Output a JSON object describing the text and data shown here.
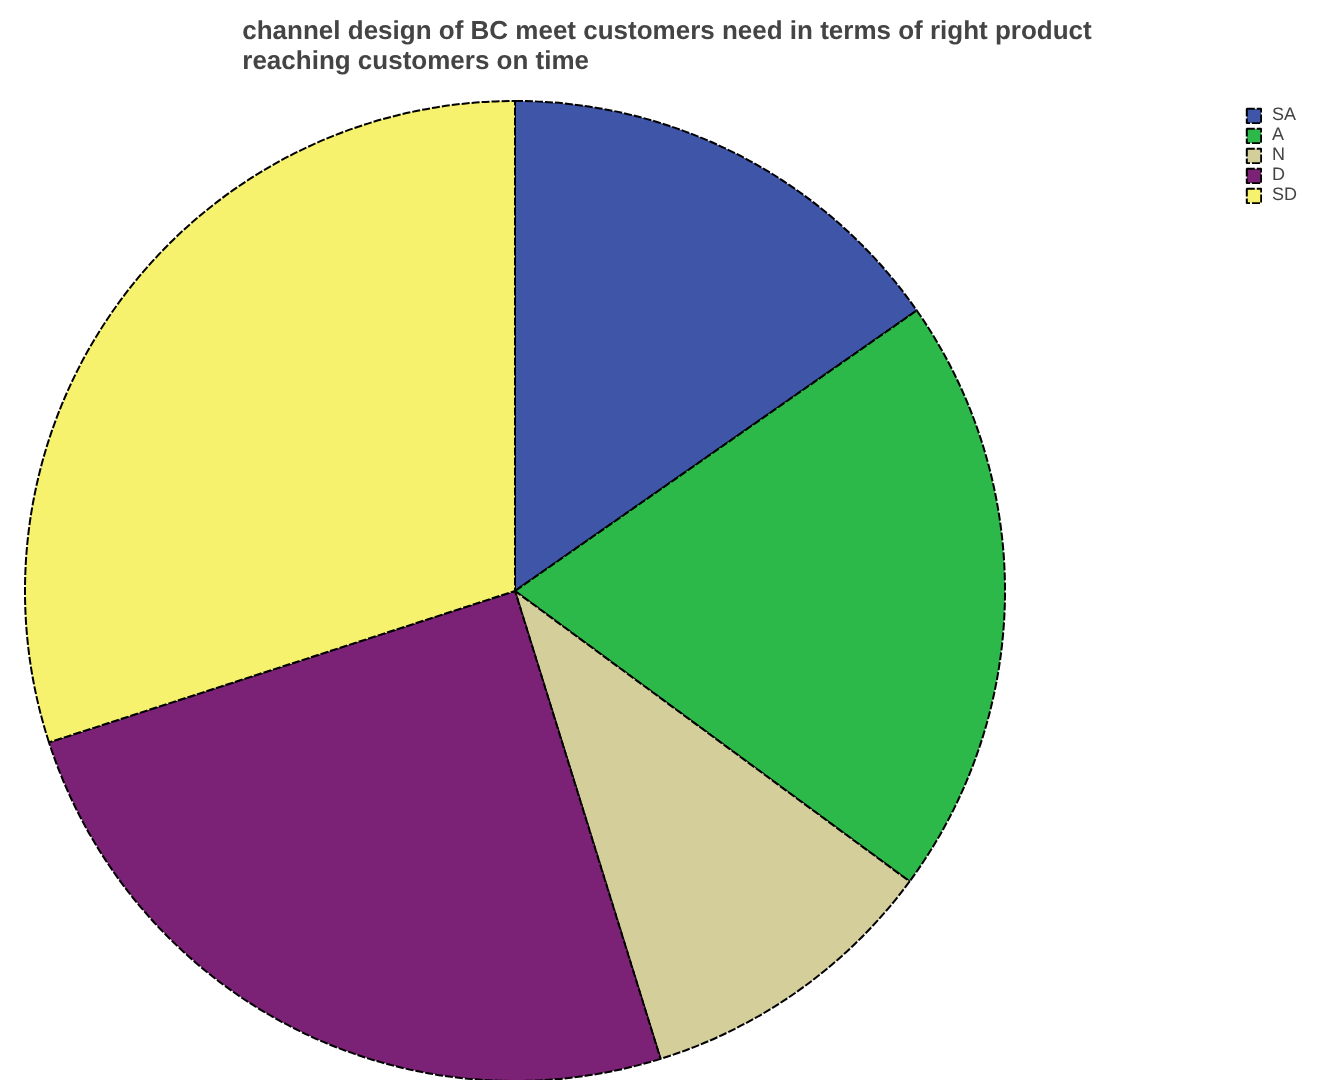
{
  "chart_data": {
    "type": "pie",
    "title": "channel design of BC meet customers need in terms of right product reaching customers on time",
    "categories": [
      "SA",
      "A",
      "N",
      "D",
      "SD"
    ],
    "values": [
      15.3,
      19.8,
      10.1,
      24.8,
      30.0
    ],
    "colors": [
      "#3f55a8",
      "#2db84a",
      "#d4cf9a",
      "#7b2276",
      "#f7f26e"
    ],
    "legend": "top right"
  }
}
